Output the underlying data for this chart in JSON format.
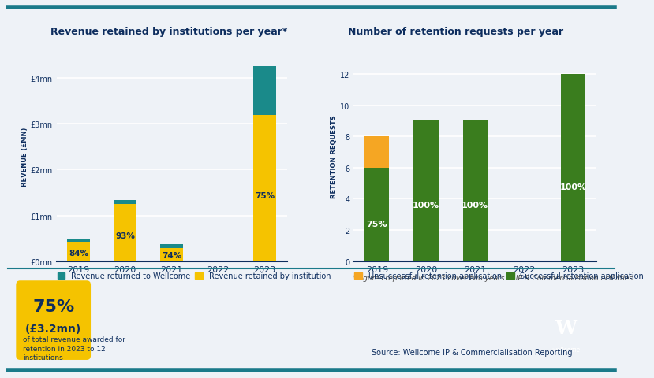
{
  "background_color": "#eef2f7",
  "top_border_color": "#1a7a8a",
  "bottom_border_color": "#1a7a8a",
  "chart1": {
    "title": "Revenue retained by institutions per year*",
    "title_color": "#0d2d5e",
    "ylabel": "REVENUE (£MN)",
    "ylabel_color": "#0d2d5e",
    "years": [
      "2019",
      "2020",
      "2021",
      "2022",
      "2023"
    ],
    "retained": [
      0.42,
      1.25,
      0.28,
      0.0,
      3.2
    ],
    "returned": [
      0.08,
      0.09,
      0.1,
      0.0,
      1.07
    ],
    "color_retained": "#f5c300",
    "color_returned": "#1a8a8a",
    "pct_labels": [
      "84%",
      "93%",
      "74%",
      "",
      "75%"
    ],
    "pct_label_color": "#0d2d5e",
    "yticks": [
      0,
      1,
      2,
      3,
      4
    ],
    "ytick_labels": [
      "£0mn",
      "£1mn",
      "£2mn",
      "£3mn",
      "£4mn"
    ],
    "ylim": [
      0,
      4.6
    ],
    "legend": [
      {
        "label": "Revenue returned to Wellcome",
        "color": "#1a8a8a"
      },
      {
        "label": "Revenue retained by institution",
        "color": "#f5c300"
      }
    ]
  },
  "chart2": {
    "title": "Number of retention requests per year",
    "title_color": "#0d2d5e",
    "ylabel": "RETENTION REQUESTS",
    "ylabel_color": "#0d2d5e",
    "years": [
      "2019",
      "2020",
      "2021",
      "2022",
      "2023"
    ],
    "successful": [
      6,
      9,
      9,
      0,
      12
    ],
    "unsuccessful": [
      2,
      0,
      0,
      0,
      0
    ],
    "color_successful": "#3a7d1e",
    "color_unsuccessful": "#f5a623",
    "pct_labels": [
      "75%",
      "100%",
      "100%",
      "",
      "100%"
    ],
    "pct_label_color": "#ffffff",
    "yticks": [
      0,
      2,
      4,
      6,
      8,
      10,
      12
    ],
    "ylim": [
      0,
      13.5
    ],
    "legend": [
      {
        "label": "Unsuccessful retention application",
        "color": "#f5a623"
      },
      {
        "label": "Successful retention application",
        "color": "#3a7d1e"
      }
    ]
  },
  "footer_note": "*Figures reported in 2023 cover two years of IP & Commercialisation activities.",
  "footer_source": "Source: Wellcome IP & Commercialisation Reporting",
  "callout_pct": "75%",
  "callout_amount": "(£3.2mn)",
  "callout_text": "of total revenue awarded for\nretention in 2023 to 12\ninstitutions",
  "callout_bg": "#f5c300",
  "callout_text_color": "#0d2d5e"
}
